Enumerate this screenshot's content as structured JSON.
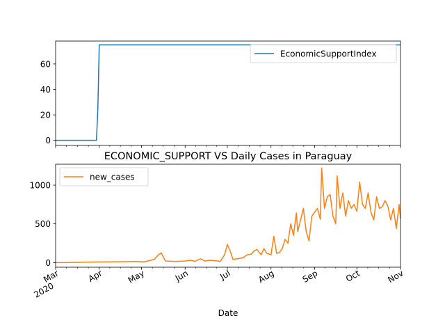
{
  "figure": {
    "title": "ECONOMIC_SUPPORT VS Daily Cases in Paraguay",
    "xlabel": "Date"
  },
  "chart_data": [
    {
      "type": "line",
      "title": "",
      "xlabel": "",
      "ylabel": "",
      "xlim": [
        "2020-03-01",
        "2020-11-01"
      ],
      "ylim": [
        -4,
        78
      ],
      "yticks": [
        0,
        20,
        40,
        60
      ],
      "legend_position": "top-right",
      "series": [
        {
          "name": "EconomicSupportIndex",
          "color": "#1f77b4",
          "x": [
            "2020-03-01",
            "2020-03-30",
            "2020-03-31",
            "2020-04-01",
            "2020-11-01"
          ],
          "y": [
            0,
            0,
            25,
            75,
            75
          ]
        }
      ]
    },
    {
      "type": "line",
      "title": "",
      "xlabel": "Date",
      "ylabel": "",
      "xlim": [
        "2020-03-01",
        "2020-11-01"
      ],
      "ylim": [
        -60,
        1270
      ],
      "yticks": [
        0,
        500,
        1000
      ],
      "legend_position": "top-left",
      "series": [
        {
          "name": "new_cases",
          "color": "#ff7f0e",
          "x": [
            "2020-03-01",
            "2020-03-08",
            "2020-03-15",
            "2020-03-22",
            "2020-03-29",
            "2020-04-05",
            "2020-04-12",
            "2020-04-19",
            "2020-04-26",
            "2020-05-03",
            "2020-05-10",
            "2020-05-13",
            "2020-05-15",
            "2020-05-18",
            "2020-05-25",
            "2020-06-01",
            "2020-06-05",
            "2020-06-08",
            "2020-06-12",
            "2020-06-15",
            "2020-06-18",
            "2020-06-22",
            "2020-06-26",
            "2020-06-29",
            "2020-07-01",
            "2020-07-03",
            "2020-07-05",
            "2020-07-08",
            "2020-07-12",
            "2020-07-15",
            "2020-07-18",
            "2020-07-20",
            "2020-07-22",
            "2020-07-25",
            "2020-07-27",
            "2020-07-29",
            "2020-08-01",
            "2020-08-03",
            "2020-08-05",
            "2020-08-07",
            "2020-08-09",
            "2020-08-11",
            "2020-08-13",
            "2020-08-15",
            "2020-08-17",
            "2020-08-19",
            "2020-08-20",
            "2020-08-22",
            "2020-08-24",
            "2020-08-26",
            "2020-08-28",
            "2020-08-30",
            "2020-09-01",
            "2020-09-03",
            "2020-09-05",
            "2020-09-06",
            "2020-09-08",
            "2020-09-10",
            "2020-09-12",
            "2020-09-14",
            "2020-09-16",
            "2020-09-17",
            "2020-09-19",
            "2020-09-21",
            "2020-09-23",
            "2020-09-25",
            "2020-09-27",
            "2020-09-29",
            "2020-10-01",
            "2020-10-03",
            "2020-10-05",
            "2020-10-07",
            "2020-10-09",
            "2020-10-11",
            "2020-10-13",
            "2020-10-15",
            "2020-10-17",
            "2020-10-19",
            "2020-10-21",
            "2020-10-23",
            "2020-10-25",
            "2020-10-27",
            "2020-10-29",
            "2020-10-31",
            "2020-11-01"
          ],
          "y": [
            0,
            0,
            2,
            5,
            7,
            8,
            10,
            12,
            15,
            10,
            40,
            100,
            125,
            20,
            15,
            20,
            30,
            15,
            50,
            20,
            30,
            25,
            15,
            100,
            235,
            150,
            40,
            50,
            60,
            100,
            110,
            150,
            170,
            100,
            180,
            120,
            100,
            340,
            120,
            130,
            180,
            300,
            250,
            500,
            350,
            640,
            400,
            550,
            700,
            400,
            280,
            600,
            650,
            700,
            560,
            1220,
            700,
            850,
            880,
            600,
            500,
            1120,
            700,
            900,
            600,
            800,
            700,
            750,
            660,
            1040,
            750,
            700,
            900,
            650,
            550,
            850,
            700,
            720,
            800,
            730,
            550,
            700,
            440,
            750,
            570
          ]
        }
      ]
    }
  ],
  "xticks": {
    "major": [
      {
        "date": "2020-03-01",
        "label": "Mar",
        "year": "2020"
      },
      {
        "date": "2020-04-01",
        "label": "Apr"
      },
      {
        "date": "2020-05-01",
        "label": "May"
      },
      {
        "date": "2020-06-01",
        "label": "Jun"
      },
      {
        "date": "2020-07-01",
        "label": "Jul"
      },
      {
        "date": "2020-08-01",
        "label": "Aug"
      },
      {
        "date": "2020-09-01",
        "label": "Sep"
      },
      {
        "date": "2020-10-01",
        "label": "Oct"
      },
      {
        "date": "2020-11-01",
        "label": "Nov"
      }
    ]
  }
}
